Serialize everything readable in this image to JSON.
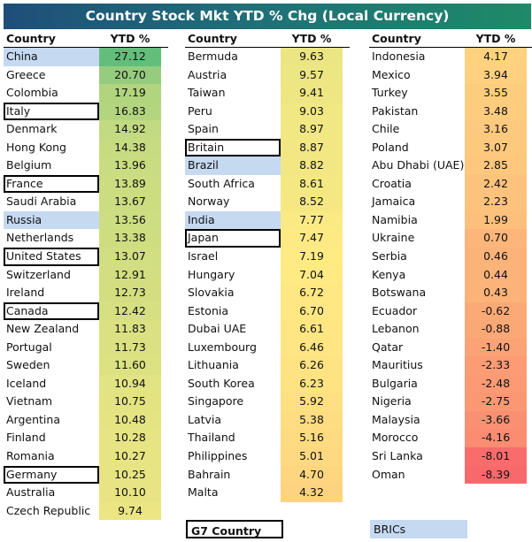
{
  "title": "Country Stock Mkt YTD % Chg (Local Currency)",
  "chart_data": {
    "type": "table",
    "title": "Country Stock Mkt YTD % Chg (Local Currency)",
    "columns": [
      "Country",
      "YTD % Chg"
    ],
    "color_scale": {
      "low": "#f8696b",
      "mid": "#ffeb84",
      "high": "#63be7b"
    },
    "groups": [
      [
        {
          "country": "China",
          "value": 27.12,
          "tag": "bric"
        },
        {
          "country": "Greece",
          "value": 20.7
        },
        {
          "country": "Colombia",
          "value": 17.19
        },
        {
          "country": "Italy",
          "value": 16.83,
          "tag": "g7"
        },
        {
          "country": "Denmark",
          "value": 14.92
        },
        {
          "country": "Hong Kong",
          "value": 14.38
        },
        {
          "country": "Belgium",
          "value": 13.96
        },
        {
          "country": "France",
          "value": 13.89,
          "tag": "g7"
        },
        {
          "country": "Saudi Arabia",
          "value": 13.67
        },
        {
          "country": "Russia",
          "value": 13.56,
          "tag": "bric"
        },
        {
          "country": "Netherlands",
          "value": 13.38
        },
        {
          "country": "United States",
          "value": 13.07,
          "tag": "g7"
        },
        {
          "country": "Switzerland",
          "value": 12.91
        },
        {
          "country": "Ireland",
          "value": 12.73
        },
        {
          "country": "Canada",
          "value": 12.42,
          "tag": "g7"
        },
        {
          "country": "New Zealand",
          "value": 11.83
        },
        {
          "country": "Portugal",
          "value": 11.73
        },
        {
          "country": "Sweden",
          "value": 11.6
        },
        {
          "country": "Iceland",
          "value": 10.94
        },
        {
          "country": "Vietnam",
          "value": 10.75
        },
        {
          "country": "Argentina",
          "value": 10.48
        },
        {
          "country": "Finland",
          "value": 10.28
        },
        {
          "country": "Romania",
          "value": 10.27
        },
        {
          "country": "Germany",
          "value": 10.25,
          "tag": "g7"
        },
        {
          "country": "Australia",
          "value": 10.1
        },
        {
          "country": "Czech Republic",
          "value": 9.74
        }
      ],
      [
        {
          "country": "Bermuda",
          "value": 9.63
        },
        {
          "country": "Austria",
          "value": 9.57
        },
        {
          "country": "Taiwan",
          "value": 9.41
        },
        {
          "country": "Peru",
          "value": 9.03
        },
        {
          "country": "Spain",
          "value": 8.97
        },
        {
          "country": "Britain",
          "value": 8.87,
          "tag": "g7"
        },
        {
          "country": "Brazil",
          "value": 8.82,
          "tag": "bric"
        },
        {
          "country": "South Africa",
          "value": 8.61
        },
        {
          "country": "Norway",
          "value": 8.52
        },
        {
          "country": "India",
          "value": 7.77,
          "tag": "bric"
        },
        {
          "country": "Japan",
          "value": 7.47,
          "tag": "g7"
        },
        {
          "country": "Israel",
          "value": 7.19
        },
        {
          "country": "Hungary",
          "value": 7.04
        },
        {
          "country": "Slovakia",
          "value": 6.72
        },
        {
          "country": "Estonia",
          "value": 6.7
        },
        {
          "country": "Dubai UAE",
          "value": 6.61
        },
        {
          "country": "Luxembourg",
          "value": 6.46
        },
        {
          "country": "Lithuania",
          "value": 6.26
        },
        {
          "country": "South Korea",
          "value": 6.23
        },
        {
          "country": "Singapore",
          "value": 5.92
        },
        {
          "country": "Latvia",
          "value": 5.38
        },
        {
          "country": "Thailand",
          "value": 5.16
        },
        {
          "country": "Philippines",
          "value": 5.01
        },
        {
          "country": "Bahrain",
          "value": 4.7
        },
        {
          "country": "Malta",
          "value": 4.32
        }
      ],
      [
        {
          "country": "Indonesia",
          "value": 4.17
        },
        {
          "country": "Mexico",
          "value": 3.94
        },
        {
          "country": "Turkey",
          "value": 3.55
        },
        {
          "country": "Pakistan",
          "value": 3.48
        },
        {
          "country": "Chile",
          "value": 3.16
        },
        {
          "country": "Poland",
          "value": 3.07
        },
        {
          "country": "Abu Dhabi (UAE)",
          "value": 2.85
        },
        {
          "country": "Croatia",
          "value": 2.42
        },
        {
          "country": "Jamaica",
          "value": 2.23
        },
        {
          "country": "Namibia",
          "value": 1.99
        },
        {
          "country": "Ukraine",
          "value": 0.7
        },
        {
          "country": "Serbia",
          "value": 0.46
        },
        {
          "country": "Kenya",
          "value": 0.44
        },
        {
          "country": "Botswana",
          "value": 0.43
        },
        {
          "country": "Ecuador",
          "value": -0.62
        },
        {
          "country": "Lebanon",
          "value": -0.88
        },
        {
          "country": "Qatar",
          "value": -1.4
        },
        {
          "country": "Mauritius",
          "value": -2.33
        },
        {
          "country": "Bulgaria",
          "value": -2.48
        },
        {
          "country": "Nigeria",
          "value": -2.75
        },
        {
          "country": "Malaysia",
          "value": -3.66
        },
        {
          "country": "Morocco",
          "value": -4.16
        },
        {
          "country": "Sri Lanka",
          "value": -8.01
        },
        {
          "country": "Oman",
          "value": -8.39
        }
      ]
    ]
  },
  "legend": {
    "g7": "G7 Country",
    "bric": "BRICs"
  }
}
